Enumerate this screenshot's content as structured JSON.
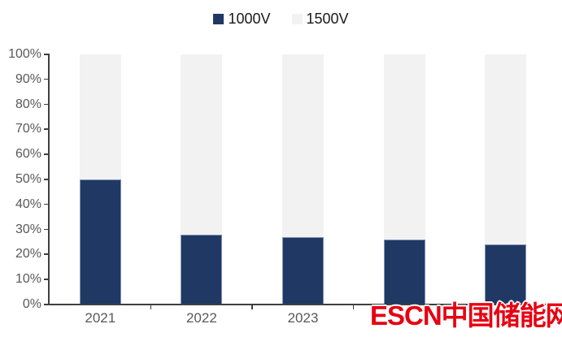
{
  "legend": {
    "items": [
      {
        "label": "1000V",
        "swatch_color": "#1f3864"
      },
      {
        "label": "1500V",
        "swatch_color": "#f2f2f2"
      }
    ]
  },
  "chart_data": {
    "type": "bar",
    "subtype": "100-percent-stacked-column",
    "title": "",
    "xlabel": "",
    "ylabel": "",
    "categories": [
      "2021",
      "2022",
      "2023",
      "",
      ""
    ],
    "series": [
      {
        "name": "1000V",
        "color": "#1f3864",
        "values": [
          50,
          28,
          27,
          26,
          24
        ]
      },
      {
        "name": "1500V",
        "color": "#f2f2f2",
        "values": [
          50,
          72,
          73,
          74,
          76
        ]
      }
    ],
    "ylim": [
      0,
      100
    ],
    "ytick_labels": [
      "0%",
      "10%",
      "20%",
      "30%",
      "40%",
      "50%",
      "60%",
      "70%",
      "80%",
      "90%",
      "100%"
    ],
    "legend_position": "top-center",
    "grid": false
  },
  "watermark": {
    "text": "ESCN中国储能网",
    "color": "#e60012"
  },
  "colors": {
    "axis": "#3f3f3f",
    "tick_label": "#595959",
    "background": "#ffffff"
  }
}
